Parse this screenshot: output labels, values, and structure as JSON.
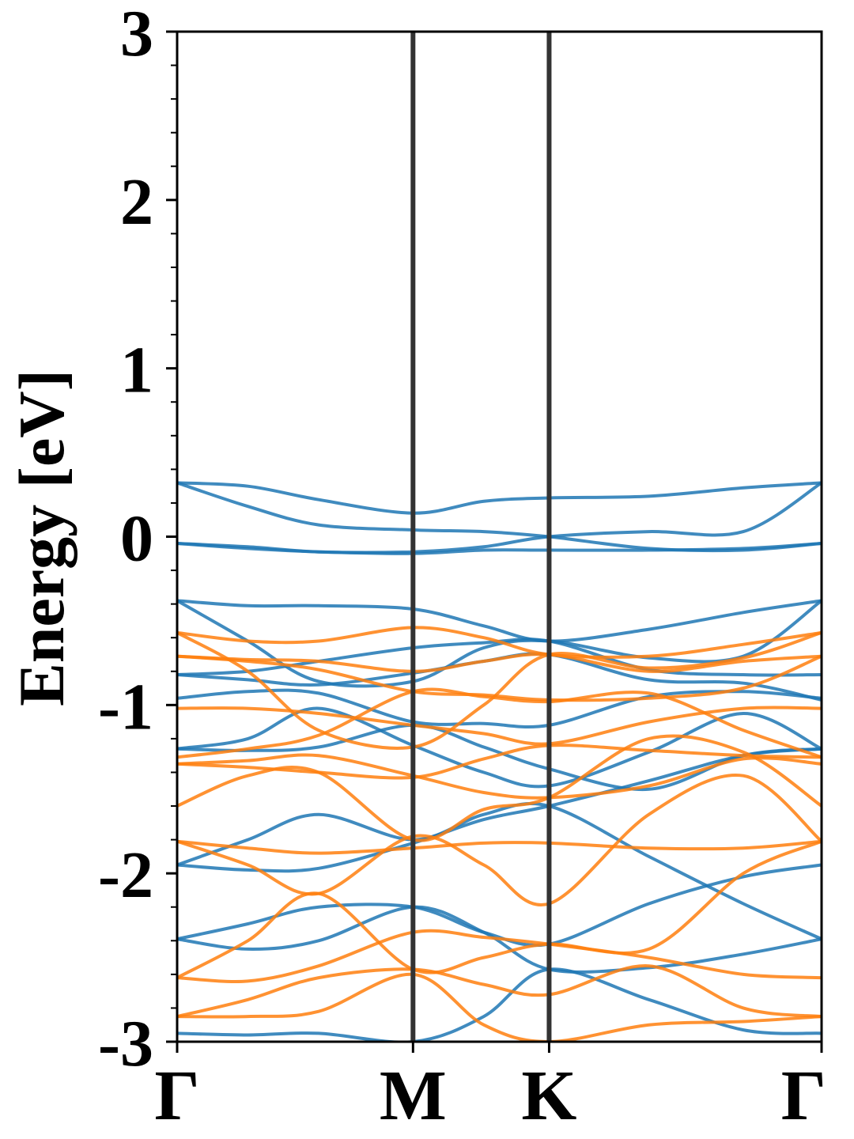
{
  "chart_data": {
    "type": "line",
    "title": "",
    "xlabel": "",
    "ylabel": "Energy [eV]",
    "ylim": [
      -3,
      3
    ],
    "y_ticks": [
      {
        "value": -3,
        "label": "-3"
      },
      {
        "value": -2,
        "label": "-2"
      },
      {
        "value": -1,
        "label": "-1"
      },
      {
        "value": 0,
        "label": "0"
      },
      {
        "value": 1,
        "label": "1"
      },
      {
        "value": 2,
        "label": "2"
      },
      {
        "value": 3,
        "label": "3"
      }
    ],
    "x_ticks": [
      {
        "value": 0,
        "label": "Γ"
      },
      {
        "value": 1,
        "label": "M"
      },
      {
        "value": 1.577,
        "label": "K"
      },
      {
        "value": 2.732,
        "label": "Γ"
      }
    ],
    "xlim": [
      0,
      2.732
    ],
    "grid": false,
    "legend": "none",
    "vertical_lines": [
      1,
      1.577
    ],
    "colors": {
      "spin_up": "#1f77b4",
      "spin_down": "#ff7f0e",
      "vline": "#333333",
      "axis": "#000000"
    },
    "series": [
      {
        "group": "spin_up",
        "color": "#1f77b4",
        "x": [
          0,
          0.3,
          0.6,
          1.0,
          1.3,
          1.577,
          2.0,
          2.4,
          2.732
        ],
        "y": [
          0.32,
          0.3,
          0.22,
          0.14,
          0.21,
          0.23,
          0.24,
          0.29,
          0.32
        ]
      },
      {
        "group": "spin_up",
        "color": "#1f77b4",
        "x": [
          0,
          0.3,
          0.6,
          1.0,
          1.3,
          1.577,
          2.0,
          2.4,
          2.732
        ],
        "y": [
          0.32,
          0.18,
          0.07,
          0.04,
          0.03,
          0.0,
          -0.07,
          -0.08,
          -0.04
        ]
      },
      {
        "group": "spin_up",
        "color": "#1f77b4",
        "x": [
          0,
          0.3,
          0.6,
          1.0,
          1.3,
          1.577,
          2.0,
          2.4,
          2.732
        ],
        "y": [
          -0.04,
          -0.06,
          -0.09,
          -0.09,
          -0.06,
          0.0,
          0.03,
          0.03,
          0.32
        ]
      },
      {
        "group": "spin_up",
        "color": "#1f77b4",
        "x": [
          0,
          0.3,
          0.6,
          1.0,
          1.3,
          1.577,
          2.0,
          2.4,
          2.732
        ],
        "y": [
          -0.04,
          -0.07,
          -0.09,
          -0.1,
          -0.08,
          -0.08,
          -0.08,
          -0.07,
          -0.04
        ]
      },
      {
        "group": "spin_up",
        "color": "#1f77b4",
        "x": [
          0,
          0.3,
          0.6,
          1.0,
          1.3,
          1.577,
          2.0,
          2.4,
          2.732
        ],
        "y": [
          -0.38,
          -0.41,
          -0.41,
          -0.43,
          -0.53,
          -0.62,
          -0.55,
          -0.45,
          -0.38
        ]
      },
      {
        "group": "spin_up",
        "color": "#1f77b4",
        "x": [
          0,
          0.3,
          0.6,
          1.0,
          1.3,
          1.577,
          2.0,
          2.4,
          2.732
        ],
        "y": [
          -0.38,
          -0.62,
          -0.86,
          -0.86,
          -0.66,
          -0.62,
          -0.72,
          -0.71,
          -0.38
        ]
      },
      {
        "group": "spin_up",
        "color": "#1f77b4",
        "x": [
          0,
          0.3,
          0.6,
          1.0,
          1.3,
          1.577,
          2.0,
          2.4,
          2.732
        ],
        "y": [
          -0.82,
          -0.8,
          -0.74,
          -0.66,
          -0.63,
          -0.62,
          -0.79,
          -0.82,
          -0.82
        ]
      },
      {
        "group": "spin_up",
        "color": "#1f77b4",
        "x": [
          0,
          0.3,
          0.6,
          1.0,
          1.3,
          1.577,
          2.0,
          2.4,
          2.732
        ],
        "y": [
          -0.82,
          -0.85,
          -0.88,
          -0.81,
          -0.74,
          -0.7,
          -0.85,
          -0.87,
          -0.97
        ]
      },
      {
        "group": "spin_up",
        "color": "#1f77b4",
        "x": [
          0,
          0.3,
          0.6,
          1.0,
          1.3,
          1.577,
          2.0,
          2.4,
          2.732
        ],
        "y": [
          -0.96,
          -0.92,
          -0.93,
          -1.1,
          -1.11,
          -1.12,
          -0.95,
          -0.92,
          -0.96
        ]
      },
      {
        "group": "spin_up",
        "color": "#1f77b4",
        "x": [
          0,
          0.3,
          0.6,
          1.0,
          1.3,
          1.577,
          2.0,
          2.4,
          2.732
        ],
        "y": [
          -1.26,
          -1.2,
          -1.02,
          -1.24,
          -1.4,
          -1.48,
          -1.28,
          -1.05,
          -1.26
        ]
      },
      {
        "group": "spin_up",
        "color": "#1f77b4",
        "x": [
          0,
          0.3,
          0.6,
          1.0,
          1.3,
          1.577,
          2.0,
          2.4,
          2.732
        ],
        "y": [
          -1.26,
          -1.27,
          -1.25,
          -1.12,
          -1.25,
          -1.38,
          -1.5,
          -1.3,
          -1.26
        ]
      },
      {
        "group": "spin_up",
        "color": "#1f77b4",
        "x": [
          0,
          0.3,
          0.6,
          1.0,
          1.3,
          1.577,
          2.0,
          2.4,
          2.732
        ],
        "y": [
          -1.95,
          -1.8,
          -1.65,
          -1.8,
          -1.65,
          -1.6,
          -1.9,
          -2.18,
          -2.39
        ]
      },
      {
        "group": "spin_up",
        "color": "#1f77b4",
        "x": [
          0,
          0.3,
          0.6,
          1.0,
          1.3,
          1.577,
          2.0,
          2.4,
          2.732
        ],
        "y": [
          -1.95,
          -1.98,
          -1.97,
          -1.82,
          -1.68,
          -1.6,
          -1.45,
          -1.3,
          -1.26
        ]
      },
      {
        "group": "spin_up",
        "color": "#1f77b4",
        "x": [
          0,
          0.3,
          0.6,
          1.0,
          1.3,
          1.577,
          2.0,
          2.4,
          2.732
        ],
        "y": [
          -2.39,
          -2.3,
          -2.2,
          -2.2,
          -2.35,
          -2.42,
          -2.18,
          -2.02,
          -1.95
        ]
      },
      {
        "group": "spin_up",
        "color": "#1f77b4",
        "x": [
          0,
          0.3,
          0.6,
          1.0,
          1.3,
          1.577,
          2.0,
          2.4,
          2.732
        ],
        "y": [
          -2.39,
          -2.45,
          -2.4,
          -2.2,
          -2.35,
          -2.57,
          -2.56,
          -2.48,
          -2.39
        ]
      },
      {
        "group": "spin_up",
        "color": "#1f77b4",
        "x": [
          0,
          0.3,
          0.6,
          1.0,
          1.3,
          1.577,
          2.0,
          2.4,
          2.732
        ],
        "y": [
          -2.95,
          -2.96,
          -2.95,
          -3.0,
          -2.85,
          -2.57,
          -2.75,
          -2.93,
          -2.95
        ]
      },
      {
        "group": "spin_down",
        "color": "#ff7f0e",
        "x": [
          0,
          0.3,
          0.6,
          1.0,
          1.3,
          1.577,
          2.0,
          2.4,
          2.732
        ],
        "y": [
          -0.57,
          -0.62,
          -0.62,
          -0.54,
          -0.6,
          -0.7,
          -0.71,
          -0.64,
          -0.57
        ]
      },
      {
        "group": "spin_down",
        "color": "#ff7f0e",
        "x": [
          0,
          0.3,
          0.6,
          1.0,
          1.3,
          1.577,
          2.0,
          2.4,
          2.732
        ],
        "y": [
          -0.57,
          -0.8,
          -1.15,
          -1.25,
          -1.0,
          -0.7,
          -0.78,
          -0.72,
          -0.57
        ]
      },
      {
        "group": "spin_down",
        "color": "#ff7f0e",
        "x": [
          0,
          0.3,
          0.6,
          1.0,
          1.3,
          1.577,
          2.0,
          2.4,
          2.732
        ],
        "y": [
          -0.71,
          -0.73,
          -0.74,
          -0.8,
          -0.74,
          -0.7,
          -0.8,
          -0.74,
          -0.71
        ]
      },
      {
        "group": "spin_down",
        "color": "#ff7f0e",
        "x": [
          0,
          0.3,
          0.6,
          1.0,
          1.3,
          1.577,
          2.0,
          2.4,
          2.732
        ],
        "y": [
          -0.71,
          -0.74,
          -0.79,
          -0.92,
          -0.94,
          -0.97,
          -0.96,
          -0.9,
          -0.71
        ]
      },
      {
        "group": "spin_down",
        "color": "#ff7f0e",
        "x": [
          0,
          0.3,
          0.6,
          1.0,
          1.3,
          1.577,
          2.0,
          2.4,
          2.732
        ],
        "y": [
          -1.02,
          -1.02,
          -1.05,
          -1.12,
          -1.17,
          -1.23,
          -1.1,
          -1.02,
          -1.02
        ]
      },
      {
        "group": "spin_down",
        "color": "#ff7f0e",
        "x": [
          0,
          0.3,
          0.6,
          1.0,
          1.3,
          1.577,
          2.0,
          2.4,
          2.732
        ],
        "y": [
          -1.31,
          -1.26,
          -1.18,
          -0.92,
          -0.95,
          -0.98,
          -0.93,
          -1.15,
          -1.31
        ]
      },
      {
        "group": "spin_down",
        "color": "#ff7f0e",
        "x": [
          0,
          0.3,
          0.6,
          1.0,
          1.3,
          1.577,
          2.0,
          2.4,
          2.732
        ],
        "y": [
          -1.35,
          -1.33,
          -1.3,
          -1.42,
          -1.52,
          -1.55,
          -1.48,
          -1.32,
          -1.35
        ]
      },
      {
        "group": "spin_down",
        "color": "#ff7f0e",
        "x": [
          0,
          0.3,
          0.6,
          1.0,
          1.3,
          1.577,
          2.0,
          2.4,
          2.732
        ],
        "y": [
          -1.35,
          -1.37,
          -1.4,
          -1.43,
          -1.32,
          -1.24,
          -1.27,
          -1.3,
          -1.31
        ]
      },
      {
        "group": "spin_down",
        "color": "#ff7f0e",
        "x": [
          0,
          0.3,
          0.6,
          1.0,
          1.3,
          1.577,
          2.0,
          2.4,
          2.732
        ],
        "y": [
          -1.6,
          -1.42,
          -1.4,
          -1.8,
          -1.62,
          -1.55,
          -1.2,
          -1.28,
          -1.6
        ]
      },
      {
        "group": "spin_down",
        "color": "#ff7f0e",
        "x": [
          0,
          0.3,
          0.6,
          1.0,
          1.3,
          1.577,
          2.0,
          2.4,
          2.732
        ],
        "y": [
          -1.81,
          -1.85,
          -1.88,
          -1.85,
          -1.82,
          -1.82,
          -1.85,
          -1.85,
          -1.81
        ]
      },
      {
        "group": "spin_down",
        "color": "#ff7f0e",
        "x": [
          0,
          0.3,
          0.6,
          1.0,
          1.3,
          1.577,
          2.0,
          2.4,
          2.732
        ],
        "y": [
          -1.81,
          -1.95,
          -2.12,
          -1.78,
          -1.95,
          -2.18,
          -1.65,
          -1.42,
          -1.81
        ]
      },
      {
        "group": "spin_down",
        "color": "#ff7f0e",
        "x": [
          0,
          0.3,
          0.6,
          1.0,
          1.3,
          1.577,
          2.0,
          2.4,
          2.732
        ],
        "y": [
          -2.62,
          -2.4,
          -2.12,
          -2.57,
          -2.5,
          -2.42,
          -2.45,
          -2.0,
          -1.81
        ]
      },
      {
        "group": "spin_down",
        "color": "#ff7f0e",
        "x": [
          0,
          0.3,
          0.6,
          1.0,
          1.3,
          1.577,
          2.0,
          2.4,
          2.732
        ],
        "y": [
          -2.62,
          -2.64,
          -2.55,
          -2.35,
          -2.38,
          -2.42,
          -2.5,
          -2.6,
          -2.62
        ]
      },
      {
        "group": "spin_down",
        "color": "#ff7f0e",
        "x": [
          0,
          0.3,
          0.6,
          1.0,
          1.3,
          1.577,
          2.0,
          2.4,
          2.732
        ],
        "y": [
          -2.85,
          -2.75,
          -2.62,
          -2.57,
          -2.66,
          -2.72,
          -2.55,
          -2.8,
          -2.85
        ]
      },
      {
        "group": "spin_down",
        "color": "#ff7f0e",
        "x": [
          0,
          0.3,
          0.6,
          1.0,
          1.3,
          1.577,
          2.0,
          2.4,
          2.732
        ],
        "y": [
          -2.85,
          -2.85,
          -2.82,
          -2.6,
          -2.9,
          -3.0,
          -2.9,
          -2.88,
          -2.85
        ]
      }
    ]
  }
}
